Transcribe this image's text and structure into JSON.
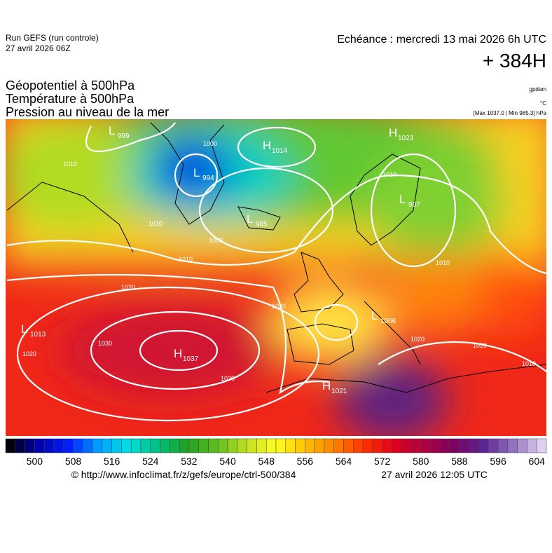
{
  "header": {
    "run": "Run GEFS (run controle)",
    "run_date": "27 avril 2026 06Z",
    "echeance": "Echéance : mercredi 13 mai 2026 6h UTC",
    "lead": "+ 384H"
  },
  "legend": {
    "lines": [
      "Géopotentiel à 500hPa",
      "Température à 500hPa",
      "Pression au niveau de la mer"
    ],
    "units": [
      "gpdam",
      "°C"
    ],
    "extremes": "[Max 1037.0 | Min 985.3] hPa"
  },
  "map": {
    "centers": [
      {
        "kind": "L",
        "value": 999
      },
      {
        "kind": "H",
        "value": 1014
      },
      {
        "kind": "L",
        "value": 994
      },
      {
        "kind": "L",
        "value": 985
      },
      {
        "kind": "H",
        "value": 1023
      },
      {
        "kind": "L",
        "value": 997
      },
      {
        "kind": "L",
        "value": 1013
      },
      {
        "kind": "H",
        "value": 1037
      },
      {
        "kind": "L",
        "value": 1006
      },
      {
        "kind": "H",
        "value": 1021
      }
    ],
    "isobar_labels": [
      1010,
      1000,
      1010,
      1000,
      1010,
      1020,
      1020,
      1030,
      1030,
      1020,
      1010,
      1010,
      1020,
      1020,
      1010
    ]
  },
  "colorbar": {
    "range": [
      494,
      606
    ],
    "ticks": [
      500,
      508,
      516,
      524,
      532,
      540,
      548,
      556,
      564,
      572,
      580,
      588,
      596,
      604
    ],
    "palette": [
      "#000010",
      "#0000b0",
      "#0020ff",
      "#00a0ff",
      "#00e0e0",
      "#00c080",
      "#20a020",
      "#60c020",
      "#c0e020",
      "#ffff20",
      "#ffc000",
      "#ff8000",
      "#ff3000",
      "#e00020",
      "#b00040",
      "#800060",
      "#5a2090",
      "#9070c0",
      "#e0d0f0"
    ]
  },
  "footer": {
    "url": "© http://www.infoclimat.fr/z/gefs/europe/ctrl-500/384",
    "generated": "27 avril 2026 12:05 UTC"
  }
}
